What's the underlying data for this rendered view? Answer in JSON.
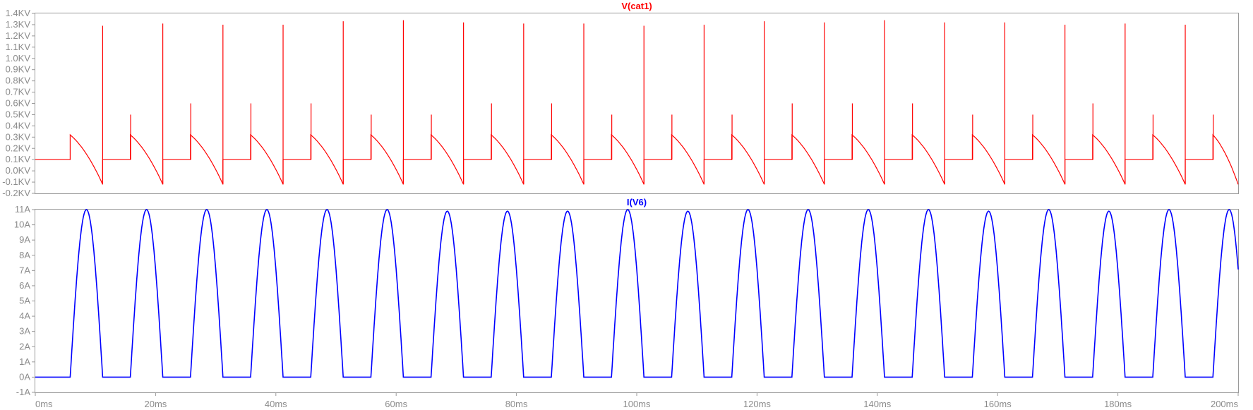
{
  "chart_data": [
    {
      "type": "line",
      "title": "V(cat1)",
      "unit": "kV",
      "x_unit": "ms",
      "xlim": [
        0,
        200
      ],
      "ylim": [
        -0.2,
        1.4
      ],
      "grid": false,
      "color": "#ff0000",
      "y_ticks": [
        1.4,
        1.3,
        1.2,
        1.1,
        1.0,
        0.9,
        0.8,
        0.7,
        0.6,
        0.5,
        0.4,
        0.3,
        0.2,
        0.1,
        0.0,
        -0.1,
        -0.2
      ],
      "y_tick_labels": [
        "1.4KV",
        "1.3KV",
        "1.2KV",
        "1.1KV",
        "1.0KV",
        "0.9KV",
        "0.8KV",
        "0.7KV",
        "0.6KV",
        "0.5KV",
        "0.4KV",
        "0.3KV",
        "0.2KV",
        "0.1KV",
        "0.0KV",
        "-0.1KV",
        "-0.2KV"
      ],
      "baseline_kv": 0.1,
      "pulse_peak_kv": 0.32,
      "pulse_min_kv": -0.12,
      "pulse_starts_ms": [
        5.8,
        15.8,
        25.8,
        35.8,
        45.8,
        55.8,
        65.8,
        75.8,
        85.8,
        95.8,
        105.8,
        115.8,
        125.8,
        135.8,
        145.8,
        155.8,
        165.8,
        175.8,
        185.8,
        195.8
      ],
      "pulse_ends_ms": [
        11.2,
        21.2,
        31.2,
        41.2,
        51.2,
        61.2,
        71.2,
        81.2,
        91.2,
        101.2,
        111.2,
        121.2,
        131.2,
        141.2,
        151.2,
        161.2,
        171.2,
        181.2,
        191.2,
        200.0
      ],
      "spike_peaks_kv": [
        1.29,
        1.31,
        1.3,
        1.3,
        1.33,
        1.34,
        1.32,
        1.31,
        1.31,
        1.29,
        1.3,
        1.33,
        1.32,
        1.34,
        1.32,
        1.32,
        1.3,
        1.31,
        1.3,
        null
      ],
      "spike_mid_kv": [
        0.5,
        0.6,
        0.6,
        0.6,
        0.5,
        0.5,
        0.6,
        0.6,
        0.5,
        0.5,
        0.5,
        0.6,
        0.6,
        0.6,
        0.5,
        0.5,
        0.6,
        0.5,
        0.5,
        null
      ]
    },
    {
      "type": "line",
      "title": "I(V6)",
      "unit": "A",
      "x_unit": "ms",
      "xlim": [
        0,
        200
      ],
      "ylim": [
        -1,
        11
      ],
      "grid": false,
      "color": "#0000ff",
      "x_ticks": [
        0,
        20,
        40,
        60,
        80,
        100,
        120,
        140,
        160,
        180,
        200
      ],
      "x_tick_labels": [
        "0ms",
        "20ms",
        "40ms",
        "60ms",
        "80ms",
        "100ms",
        "120ms",
        "140ms",
        "160ms",
        "180ms",
        "200ms"
      ],
      "y_ticks": [
        11,
        10,
        9,
        8,
        7,
        6,
        5,
        4,
        3,
        2,
        1,
        0,
        -1
      ],
      "y_tick_labels": [
        "11A",
        "10A",
        "9A",
        "8A",
        "7A",
        "6A",
        "5A",
        "4A",
        "3A",
        "2A",
        "1A",
        "0A",
        "-1A"
      ],
      "pulse_starts_ms": [
        5.8,
        15.8,
        25.8,
        35.8,
        45.8,
        55.8,
        65.8,
        75.8,
        85.8,
        95.8,
        105.8,
        115.8,
        125.8,
        135.8,
        145.8,
        155.8,
        165.8,
        175.8,
        185.8,
        195.8
      ],
      "pulse_ends_ms": [
        11.2,
        21.2,
        31.2,
        41.2,
        51.2,
        61.2,
        71.2,
        81.2,
        91.2,
        101.2,
        111.2,
        121.2,
        131.2,
        141.2,
        151.2,
        161.2,
        171.2,
        181.2,
        191.2,
        201.2
      ],
      "peak_a": [
        11.0,
        11.0,
        11.0,
        11.0,
        11.0,
        11.0,
        10.9,
        10.9,
        10.9,
        11.0,
        10.9,
        11.0,
        11.0,
        11.0,
        11.0,
        10.9,
        11.0,
        10.9,
        11.0,
        11.0
      ]
    }
  ]
}
